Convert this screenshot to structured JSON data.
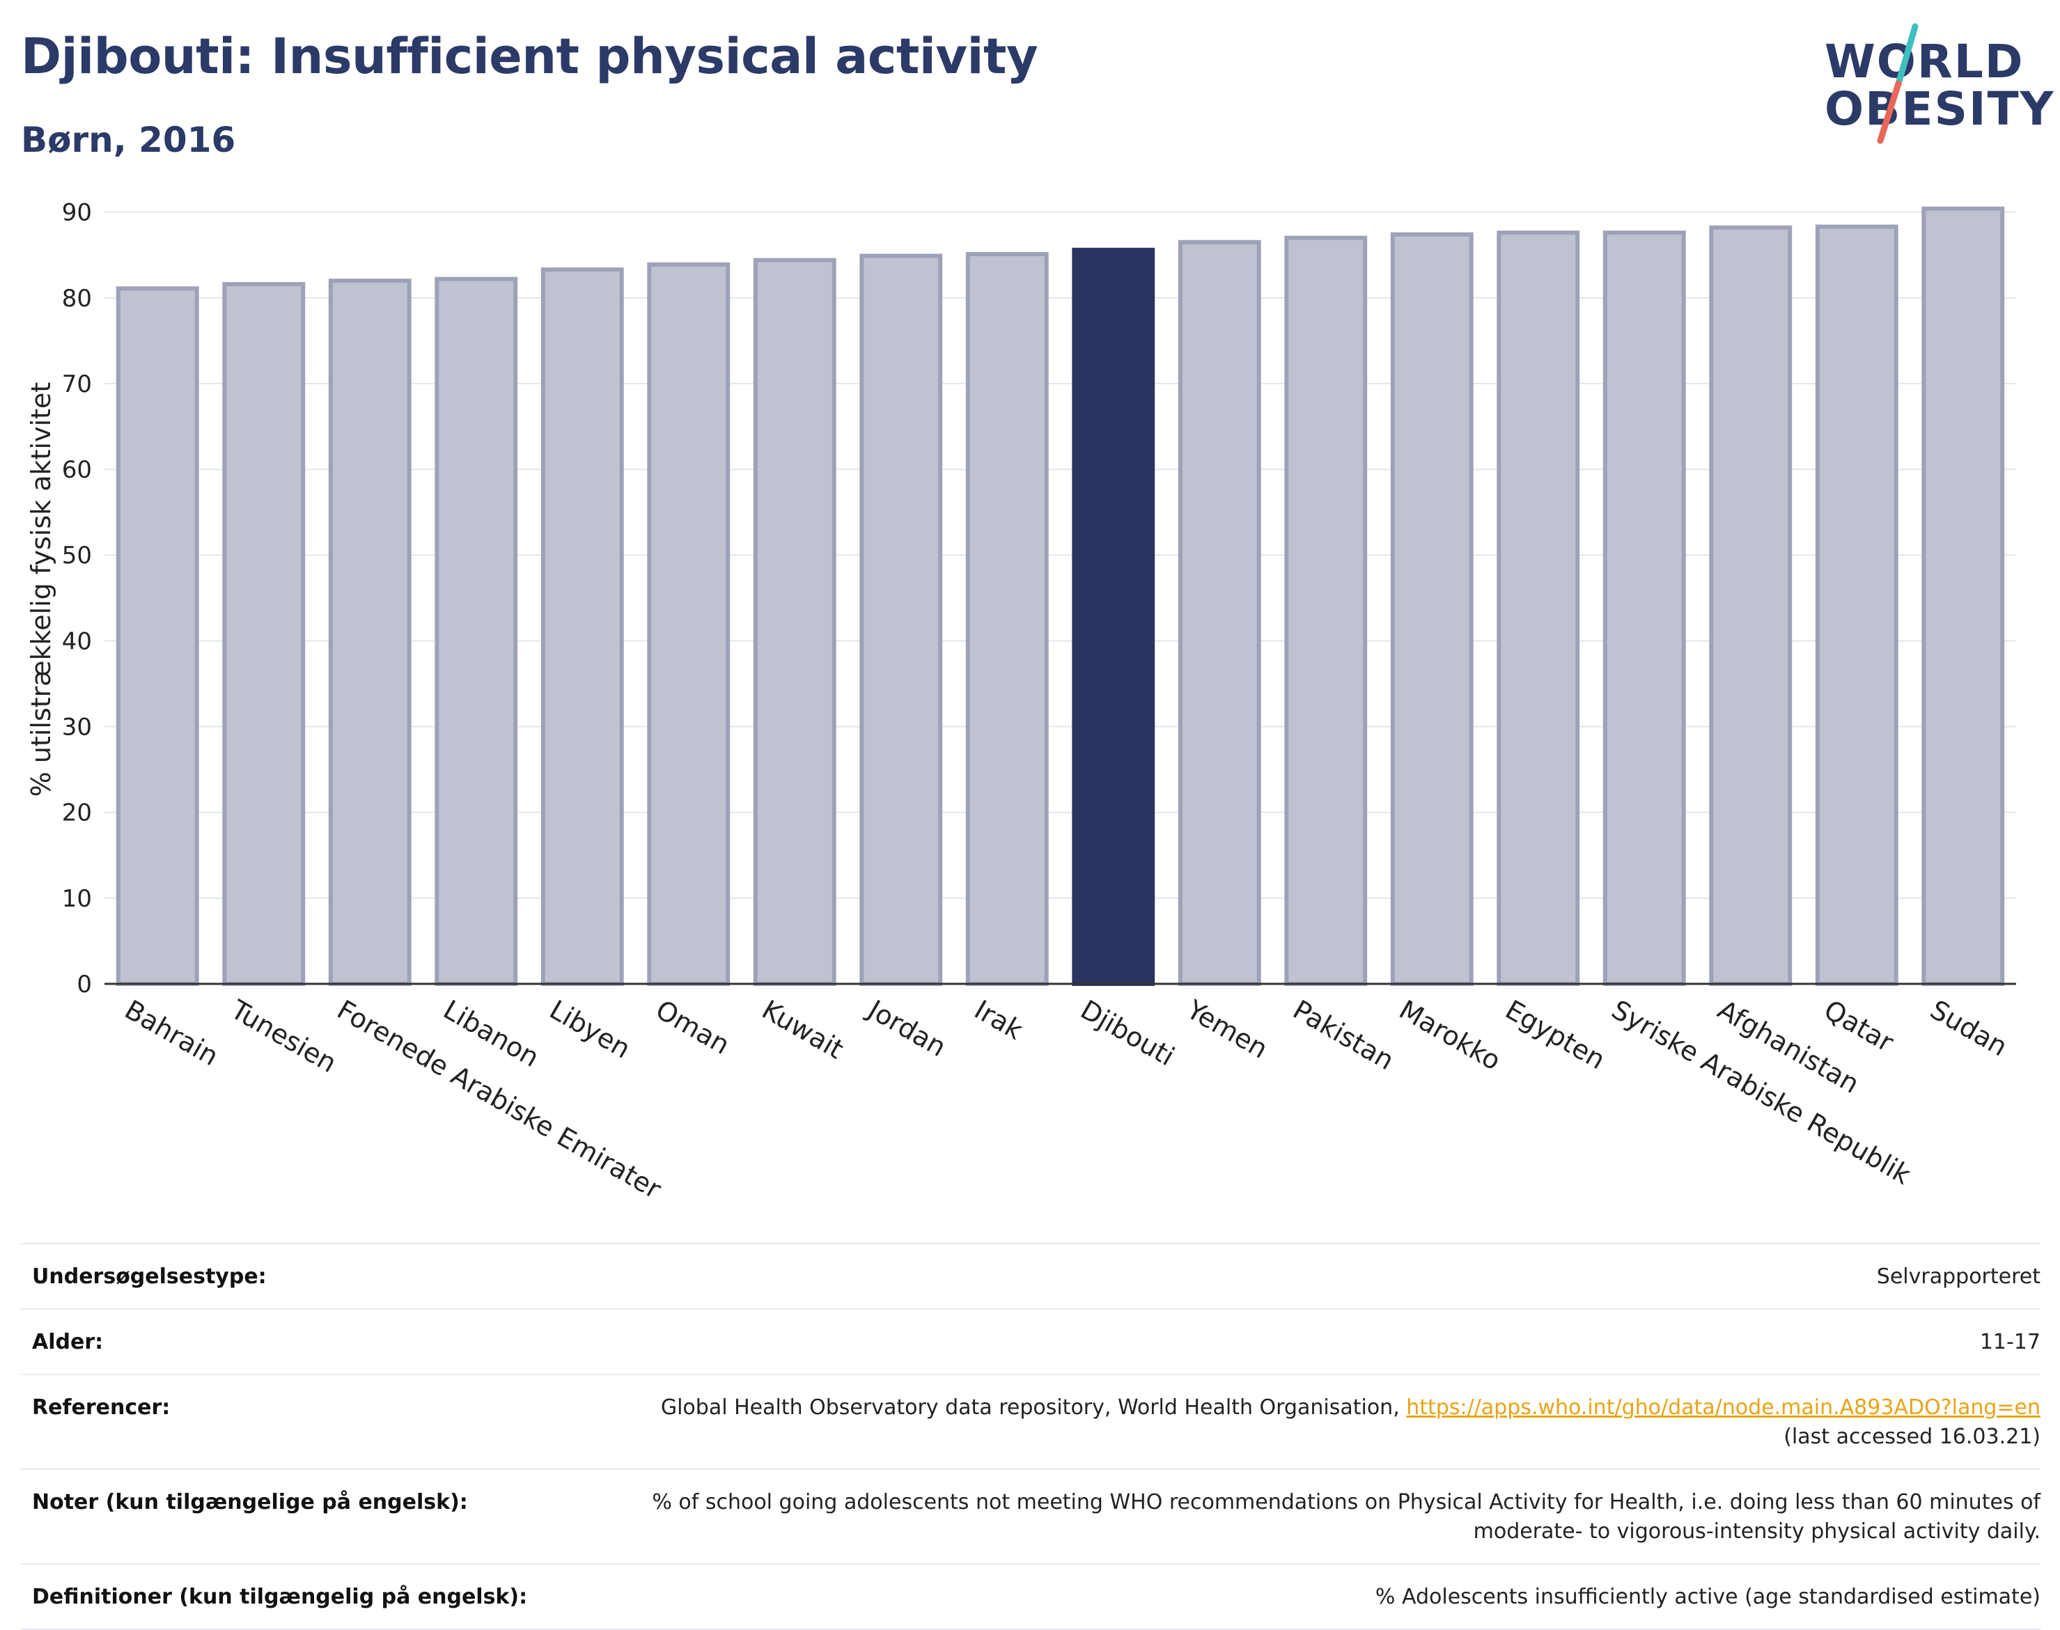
{
  "header": {
    "title": "Djibouti: Insufficient physical activity",
    "subtitle": "Børn, 2016"
  },
  "logo": {
    "line1": "WORLD",
    "line2": "OBESITY",
    "colors": {
      "text": "#2b3a67",
      "slash_top": "#3fbfbf",
      "slash_bottom": "#e8675a"
    }
  },
  "chart_data": {
    "type": "bar",
    "ylabel": "% utilstrækkelig fysisk aktivitet",
    "xlabel": "",
    "ylim": [
      0,
      92
    ],
    "yticks": [
      0,
      10,
      20,
      30,
      40,
      50,
      60,
      70,
      80,
      90
    ],
    "grid": true,
    "highlight": "Djibouti",
    "colors": {
      "bar": "#bfc2d0",
      "bar_edge": "#9da2b8",
      "highlight": "#2b3460"
    },
    "categories": [
      "Bahrain",
      "Tunesien",
      "Forenede Arabiske Emirater",
      "Libanon",
      "Libyen",
      "Oman",
      "Kuwait",
      "Jordan",
      "Irak",
      "Djibouti",
      "Yemen",
      "Pakistan",
      "Marokko",
      "Egypten",
      "Syriske Arabiske Republik",
      "Afghanistan",
      "Qatar",
      "Sudan"
    ],
    "values": [
      81.1,
      81.6,
      82.0,
      82.2,
      83.3,
      83.9,
      84.4,
      84.9,
      85.1,
      85.6,
      86.5,
      87.0,
      87.4,
      87.6,
      87.6,
      88.2,
      88.3,
      90.4
    ]
  },
  "info": {
    "rows": [
      {
        "key": "Undersøgelsestype:",
        "value": "Selvrapporteret"
      },
      {
        "key": "Alder:",
        "value": "11-17"
      },
      {
        "key": "Referencer:",
        "value": "Global Health Observatory data repository, World Health Organisation, ",
        "link": "https://apps.who.int/gho/data/node.main.A893ADO?lang=en",
        "value2": "(last accessed 16.03.21)"
      },
      {
        "key": "Noter (kun tilgængelige på engelsk):",
        "value": "% of school going adolescents not meeting WHO recommendations on Physical Activity for Health, i.e. doing less than 60 minutes of",
        "value2": "moderate- to vigorous-intensity physical activity daily."
      },
      {
        "key": "Definitioner (kun tilgængelig på engelsk):",
        "value": "% Adolescents insufficiently active (age standardised estimate)"
      }
    ]
  }
}
